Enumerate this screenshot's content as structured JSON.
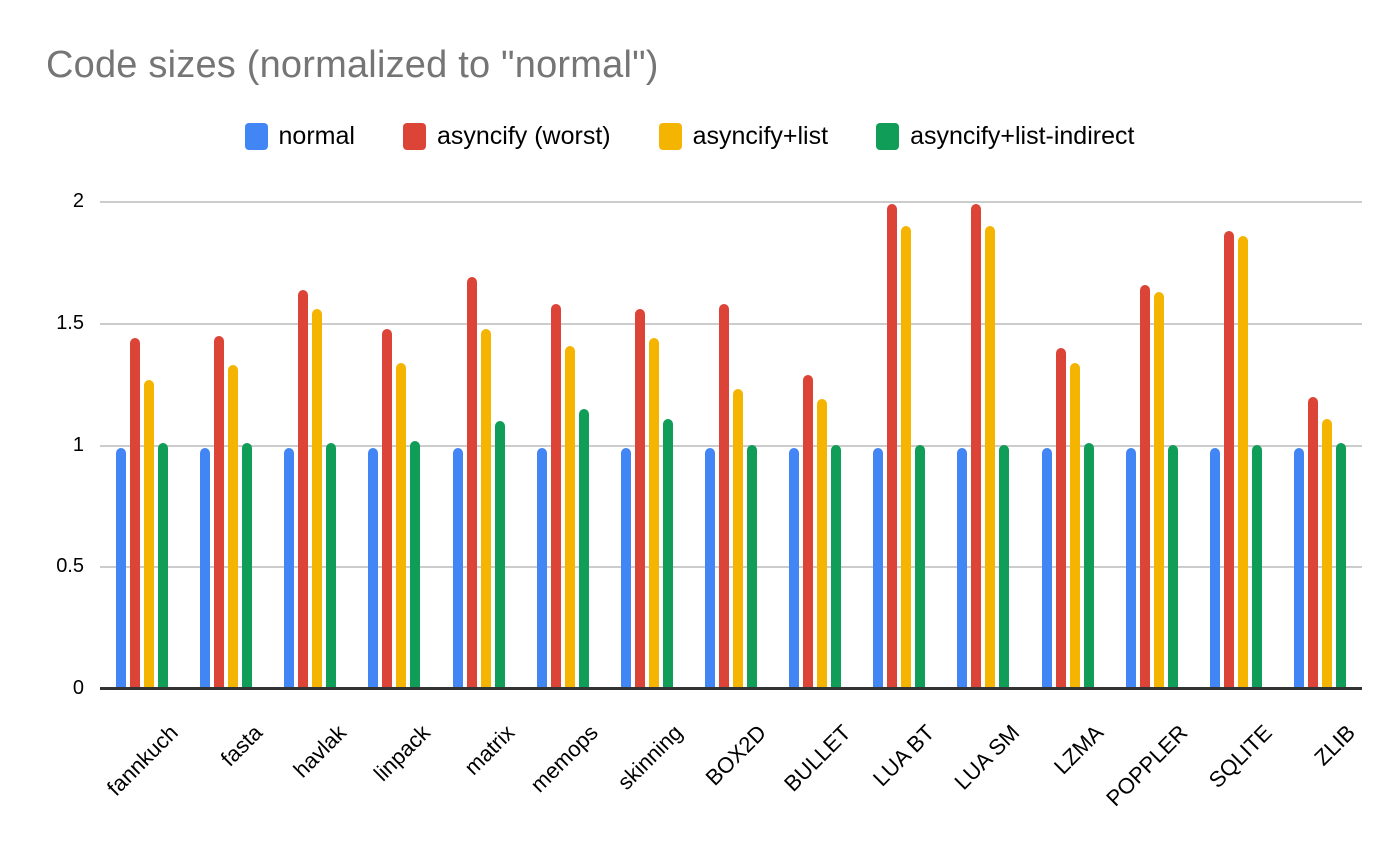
{
  "chart_data": {
    "type": "bar",
    "title": "Code sizes (normalized to \"normal\")",
    "categories": [
      "fannkuch",
      "fasta",
      "havlak",
      "linpack",
      "matrix",
      "memops",
      "skinning",
      "BOX2D",
      "BULLET",
      "LUA BT",
      "LUA SM",
      "LZMA",
      "POPPLER",
      "SQLITE",
      "ZLIB"
    ],
    "series": [
      {
        "name": "normal",
        "color": "#4285F4",
        "values": [
          0.99,
          0.99,
          0.99,
          0.99,
          0.99,
          0.99,
          0.99,
          0.99,
          0.99,
          0.99,
          0.99,
          0.99,
          0.99,
          0.99,
          0.99
        ]
      },
      {
        "name": "asyncify (worst)",
        "color": "#DB4437",
        "values": [
          1.44,
          1.45,
          1.64,
          1.48,
          1.69,
          1.58,
          1.56,
          1.58,
          1.29,
          1.99,
          1.99,
          1.4,
          1.66,
          1.88,
          1.2
        ]
      },
      {
        "name": "asyncify+list",
        "color": "#F4B400",
        "values": [
          1.27,
          1.33,
          1.56,
          1.34,
          1.48,
          1.41,
          1.44,
          1.23,
          1.19,
          1.9,
          1.9,
          1.34,
          1.63,
          1.86,
          1.11
        ]
      },
      {
        "name": "asyncify+list-indirect",
        "color": "#0F9D58",
        "values": [
          1.01,
          1.01,
          1.01,
          1.02,
          1.1,
          1.15,
          1.11,
          1.0,
          1.0,
          1.0,
          1.0,
          1.01,
          1.0,
          1.0,
          1.01
        ]
      }
    ],
    "xlabel": "",
    "ylabel": "",
    "ylim": [
      0,
      2
    ],
    "yticks": [
      0,
      0.5,
      1,
      1.5,
      2
    ],
    "grid": true,
    "legend_position": "top",
    "style": {
      "title_color": "#757575",
      "gridline_color": "#cccccc",
      "baseline_color": "#333333",
      "background": "#ffffff"
    }
  }
}
